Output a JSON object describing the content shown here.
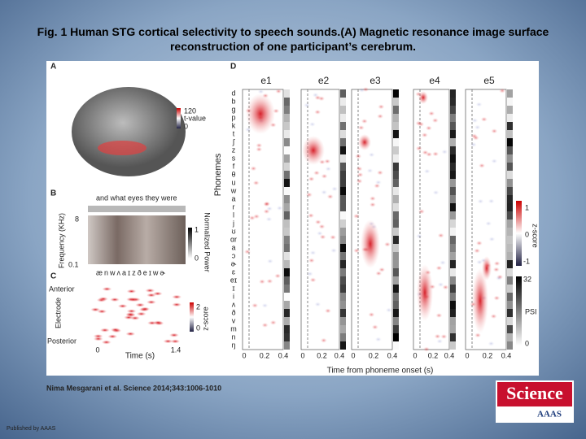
{
  "slide": {
    "title": "Fig. 1 Human STG cortical selectivity to speech sounds.(A) Magnetic resonance image surface reconstruction of one participant’s cerebrum.",
    "figure": {
      "panel_a": {
        "label": "A",
        "colorbar": [
          "120",
          "t-value",
          "0"
        ]
      },
      "panel_b": {
        "label": "B",
        "sentence": "and what eyes they were",
        "y_label": "Frequency (KHz)",
        "y_ticks": [
          "8",
          "0.1"
        ],
        "colorbar": [
          "1",
          "0"
        ],
        "colorbar_label": "Normalized Power",
        "phonetic": "ænwʌaɪzðeɪwɚ"
      },
      "panel_c": {
        "label": "C",
        "top": "Anterior",
        "y_label": "Electrode",
        "bottom": "Posterior",
        "colorbar": [
          "2",
          "0"
        ],
        "colorbar_label": "z-score",
        "x_ticks": [
          "0",
          "1.4"
        ],
        "x_label": "Time (s)"
      },
      "panel_d": {
        "label": "D",
        "columns": [
          "e1",
          "e2",
          "e3",
          "e4",
          "e5"
        ],
        "y_label": "Phonemes",
        "phonemes": [
          "d",
          "b",
          "g",
          "p",
          "k",
          "t",
          "ʃ",
          "z",
          "s",
          "f",
          "θ",
          "u",
          "w",
          "a",
          "r",
          "l",
          "j",
          "ʊ",
          "ɑr",
          "a",
          "ɔ",
          "ɚ",
          "ɛ",
          "eɪ",
          "ɪ",
          "i",
          "ʌ",
          "ð",
          "v",
          "m",
          "n",
          "ŋ"
        ],
        "x_ticks": [
          "0",
          "0.2",
          "0.4"
        ],
        "x_label": "Time from phoneme onset (s)",
        "zscore_bar": [
          "1",
          "0",
          "-1"
        ],
        "zscore_label": "z-score",
        "psi_bar": [
          "32",
          "0"
        ],
        "psi_label": "PSI"
      }
    },
    "citation": "Nima Mesgarani et al. Science 2014;343:1006-1010",
    "publisher": "Published by AAAS",
    "logo": {
      "name": "Science",
      "sub": "AAAS"
    }
  }
}
